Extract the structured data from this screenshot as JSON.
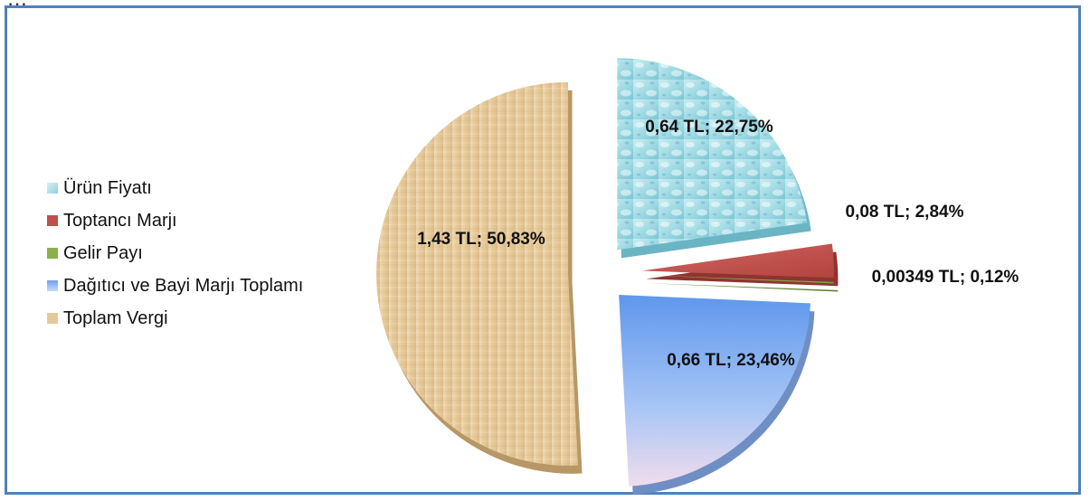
{
  "header_text": "…",
  "colors": {
    "frame": "#4f81bd",
    "water": "#9fd8e2",
    "red": "#c0504d",
    "green": "#8ab04a",
    "blue": "#8fb4ef",
    "beige": "#e6c99a"
  },
  "chart_data": {
    "type": "pie",
    "title": "",
    "legend_position": "left",
    "exploded": true,
    "categories": [
      "Ürün Fiyatı",
      "Toptancı Marjı",
      "Gelir Payı",
      "Dağıtıcı ve Bayi Marjı Toplamı",
      "Toplam Vergi"
    ],
    "values": [
      0.64,
      0.08,
      0.00349,
      0.66,
      1.43
    ],
    "percents": [
      22.75,
      2.84,
      0.12,
      23.46,
      50.83
    ],
    "labels": [
      "0,64 TL; 22,75%",
      "0,08 TL; 2,84%",
      "0,00349 TL; 0,12%",
      "0,66 TL; 23,46%",
      "1,43 TL; 50,83%"
    ],
    "legend": [
      "Ürün Fiyatı",
      "Toptancı Marjı",
      "Gelir Payı",
      "Dağıtıcı ve Bayi Marjı Toplamı",
      "Toplam Vergi"
    ]
  }
}
